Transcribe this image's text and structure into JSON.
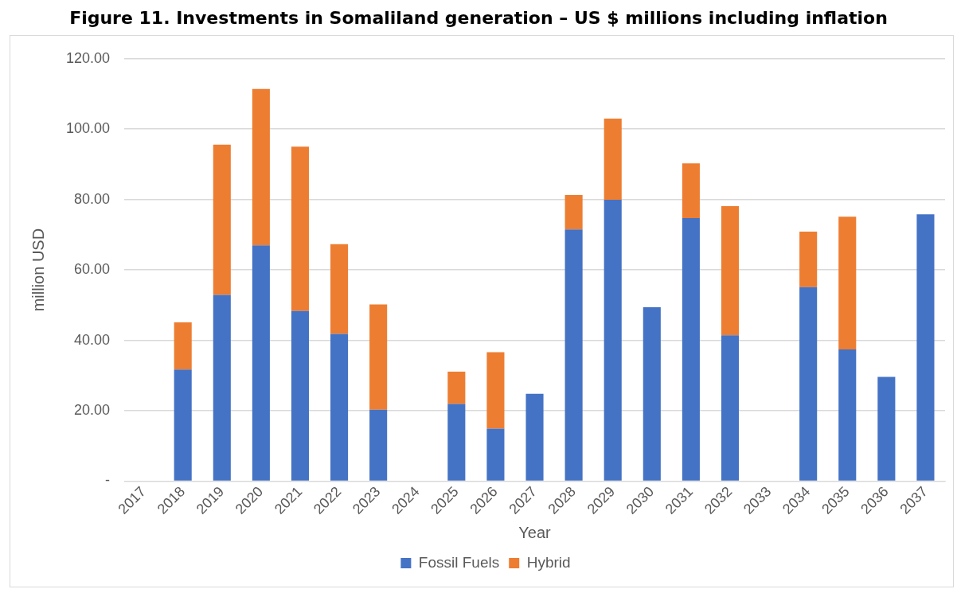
{
  "chart_data": {
    "type": "bar",
    "title": "Figure 11. Investments in Somaliland generation – US $ millions including inflation",
    "xlabel": "Year",
    "ylabel": "million USD",
    "categories": [
      "2017",
      "2018",
      "2019",
      "2020",
      "2021",
      "2022",
      "2023",
      "2024",
      "2025",
      "2026",
      "2027",
      "2028",
      "2029",
      "2030",
      "2031",
      "2032",
      "2033",
      "2034",
      "2035",
      "2036",
      "2037"
    ],
    "stacked": true,
    "series": [
      {
        "name": "Fossil Fuels",
        "color": "#4472c4",
        "values": [
          null,
          31.7,
          52.9,
          67.0,
          48.3,
          41.8,
          20.3,
          null,
          21.9,
          14.9,
          24.8,
          71.5,
          79.9,
          49.4,
          74.7,
          41.4,
          null,
          55.1,
          37.4,
          29.6,
          75.8
        ]
      },
      {
        "name": "Hybrid",
        "color": "#ed7d31",
        "values": [
          null,
          13.4,
          42.7,
          44.4,
          46.7,
          25.5,
          29.9,
          null,
          9.2,
          21.7,
          null,
          9.8,
          23.1,
          null,
          15.6,
          36.7,
          null,
          15.8,
          37.7,
          null,
          null
        ]
      }
    ],
    "ylim": [
      0,
      120
    ],
    "yticks": [
      {
        "value": 0,
        "label": "-"
      },
      {
        "value": 20,
        "label": "20.00"
      },
      {
        "value": 40,
        "label": "40.00"
      },
      {
        "value": 60,
        "label": "60.00"
      },
      {
        "value": 80,
        "label": "80.00"
      },
      {
        "value": 100,
        "label": "100.00"
      },
      {
        "value": 120,
        "label": "120.00"
      }
    ],
    "grid": "y",
    "legend": "bottom"
  }
}
